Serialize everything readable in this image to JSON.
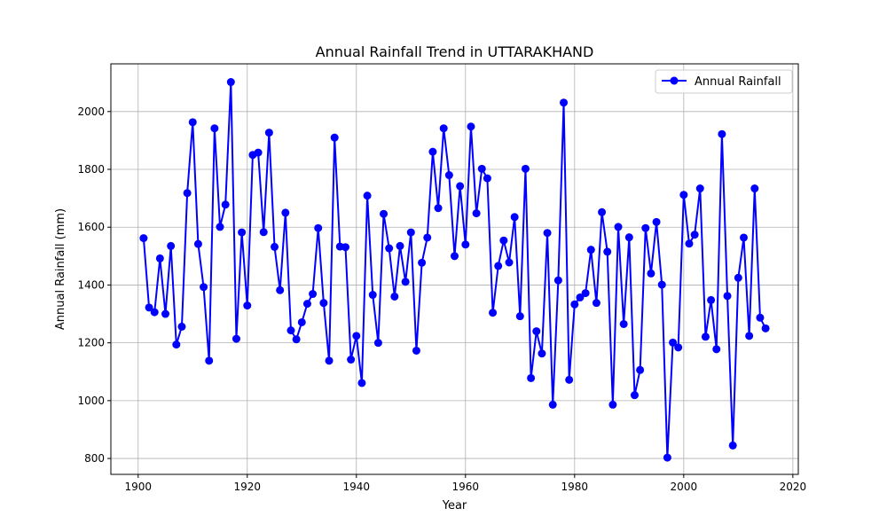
{
  "chart_data": {
    "type": "line",
    "title": "Annual Rainfall Trend in UTTARAKHAND",
    "xlabel": "Year",
    "ylabel": "Annual Rainfall (mm)",
    "xlim": [
      1895,
      2021
    ],
    "ylim": [
      745,
      2165
    ],
    "xticks": [
      1900,
      1920,
      1940,
      1960,
      1980,
      2000,
      2020
    ],
    "yticks": [
      800,
      1000,
      1200,
      1400,
      1600,
      1800,
      2000
    ],
    "grid": true,
    "legend_position": "top-right",
    "series": [
      {
        "name": "Annual Rainfall",
        "color": "#0000ff",
        "marker": "circle",
        "x": [
          1901,
          1902,
          1903,
          1904,
          1905,
          1906,
          1907,
          1908,
          1909,
          1910,
          1911,
          1912,
          1913,
          1914,
          1915,
          1916,
          1917,
          1918,
          1919,
          1920,
          1921,
          1922,
          1923,
          1924,
          1925,
          1926,
          1927,
          1928,
          1929,
          1930,
          1931,
          1932,
          1933,
          1934,
          1935,
          1936,
          1937,
          1938,
          1939,
          1940,
          1941,
          1942,
          1943,
          1944,
          1945,
          1946,
          1947,
          1948,
          1949,
          1950,
          1951,
          1952,
          1953,
          1954,
          1955,
          1956,
          1957,
          1958,
          1959,
          1960,
          1961,
          1962,
          1963,
          1964,
          1965,
          1966,
          1967,
          1968,
          1969,
          1970,
          1971,
          1972,
          1973,
          1974,
          1975,
          1976,
          1977,
          1978,
          1979,
          1980,
          1981,
          1982,
          1983,
          1984,
          1985,
          1986,
          1987,
          1988,
          1989,
          1990,
          1991,
          1992,
          1993,
          1994,
          1995,
          1996,
          1997,
          1998,
          1999,
          2000,
          2001,
          2002,
          2003,
          2004,
          2005,
          2006,
          2007,
          2008,
          2009,
          2010,
          2011,
          2012,
          2013,
          2014,
          2015
        ],
        "values": [
          1562,
          1322,
          1306,
          1492,
          1300,
          1535,
          1194,
          1256,
          1718,
          1963,
          1542,
          1393,
          1138,
          1942,
          1601,
          1678,
          2102,
          1214,
          1582,
          1329,
          1850,
          1858,
          1583,
          1927,
          1532,
          1382,
          1650,
          1243,
          1212,
          1271,
          1335,
          1369,
          1597,
          1338,
          1138,
          1910,
          1533,
          1531,
          1142,
          1224,
          1061,
          1709,
          1366,
          1200,
          1646,
          1527,
          1360,
          1535,
          1411,
          1582,
          1173,
          1477,
          1564,
          1861,
          1666,
          1942,
          1780,
          1500,
          1742,
          1540,
          1948,
          1648,
          1802,
          1769,
          1304,
          1466,
          1554,
          1478,
          1635,
          1292,
          1802,
          1078,
          1240,
          1163,
          1580,
          986,
          1416,
          2031,
          1072,
          1333,
          1357,
          1372,
          1522,
          1338,
          1652,
          1515,
          986,
          1601,
          1265,
          1565,
          1019,
          1106,
          1597,
          1440,
          1618,
          1401,
          803,
          1201,
          1184,
          1712,
          1543,
          1574,
          1734,
          1221,
          1348,
          1178,
          1922,
          1362,
          845,
          1425,
          1564,
          1224,
          1734,
          1287,
          1250
        ]
      }
    ]
  }
}
